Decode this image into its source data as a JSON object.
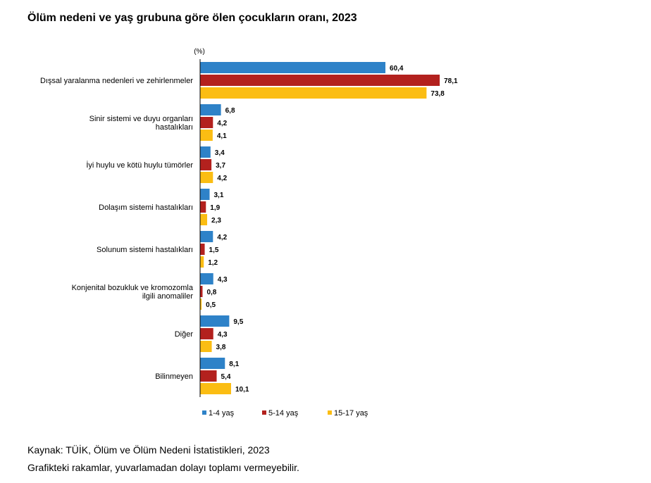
{
  "title": "Ölüm nedeni ve yaş grubuna göre ölen çocukların oranı, 2023",
  "source": "Kaynak: TÜİK, Ölüm ve Ölüm Nedeni İstatistikleri, 2023",
  "note": "Grafikteki rakamlar, yuvarlamadan dolayı toplamı vermeyebilir.",
  "chart_data": {
    "type": "bar",
    "orientation": "horizontal",
    "unit_label": "(%)",
    "categories": [
      [
        "Dışsal yaralanma nedenleri ve zehirlenmeler"
      ],
      [
        "Sinir sistemi ve duyu organları",
        "hastalıkları"
      ],
      [
        "İyi huylu ve kötü huylu tümörler"
      ],
      [
        "Dolaşım sistemi hastalıkları"
      ],
      [
        "Solunum sistemi hastalıkları"
      ],
      [
        "Konjenital bozukluk ve kromozomla",
        "ilgili anomaliler"
      ],
      [
        "Diğer"
      ],
      [
        "Bilinmeyen"
      ]
    ],
    "series": [
      {
        "name": "1-4 yaş",
        "color": "#2e82c8",
        "values": [
          60.4,
          6.8,
          3.4,
          3.1,
          4.2,
          4.3,
          9.5,
          8.1
        ],
        "labels": [
          "60,4",
          "6,8",
          "3,4",
          "3,1",
          "4,2",
          "4,3",
          "9,5",
          "8,1"
        ]
      },
      {
        "name": "5-14 yaş",
        "color": "#b3211e",
        "values": [
          78.1,
          4.2,
          3.7,
          1.9,
          1.5,
          0.8,
          4.3,
          5.4
        ],
        "labels": [
          "78,1",
          "4,2",
          "3,7",
          "1,9",
          "1,5",
          "0,8",
          "4,3",
          "5,4"
        ]
      },
      {
        "name": "15-17 yaş",
        "color": "#fbbd13",
        "values": [
          73.8,
          4.1,
          4.2,
          2.3,
          1.2,
          0.5,
          3.8,
          10.1
        ],
        "labels": [
          "73,8",
          "4,1",
          "4,2",
          "2,3",
          "1,2",
          "0,5",
          "3,8",
          "10,1"
        ]
      }
    ],
    "grid": false,
    "legend_position": "bottom"
  }
}
